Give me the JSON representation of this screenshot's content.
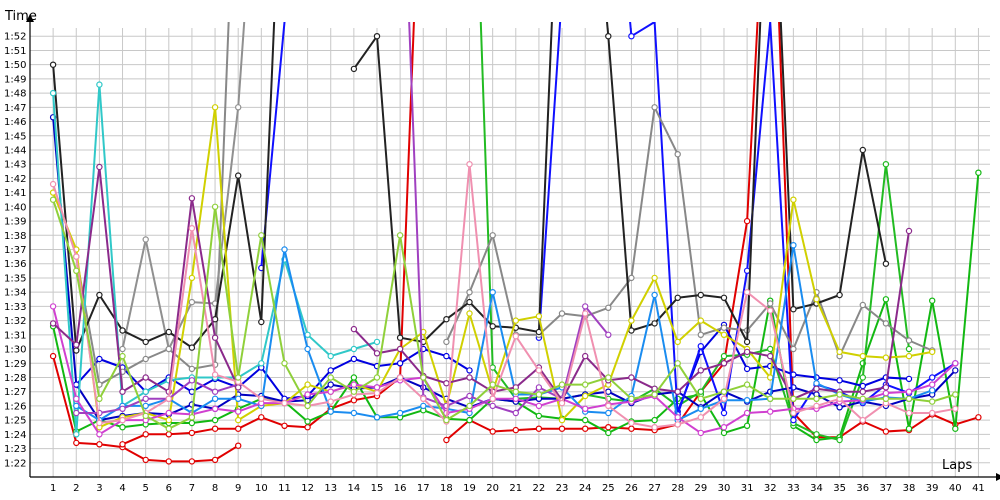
{
  "chart_data": {
    "type": "line",
    "ylabel": "Time",
    "xlabel": "Laps",
    "ylim": [
      "1:21",
      "1:53"
    ],
    "xlim": [
      0,
      41.5
    ],
    "grid": true,
    "x_ticks": [
      "1",
      "2",
      "3",
      "4",
      "5",
      "6",
      "7",
      "8",
      "9",
      "10",
      "11",
      "12",
      "13",
      "14",
      "15",
      "16",
      "17",
      "18",
      "19",
      "20",
      "21",
      "22",
      "23",
      "24",
      "25",
      "26",
      "27",
      "28",
      "29",
      "30",
      "31",
      "32",
      "33",
      "34",
      "35",
      "36",
      "37",
      "38",
      "39",
      "40",
      "41"
    ],
    "y_ticks": [
      "1:22",
      "1:23",
      "1:24",
      "1:25",
      "1:26",
      "1:27",
      "1:28",
      "1:29",
      "1:30",
      "1:31",
      "1:32",
      "1:33",
      "1:34",
      "1:35",
      "1:36",
      "1:37",
      "1:38",
      "1:39",
      "1:40",
      "1:41",
      "1:42",
      "1:43",
      "1:44",
      "1:45",
      "1:46",
      "1:47",
      "1:48",
      "1:49",
      "1:50",
      "1:51",
      "1:52"
    ],
    "series": [
      {
        "color": "#e00000",
        "values": [
          89.5,
          83.4,
          83.3,
          83.1,
          82.2,
          82.1,
          82.1,
          82.2,
          83.2,
          null,
          null,
          null,
          null,
          null,
          null,
          null,
          null,
          83.6,
          85.0,
          84.2,
          84.3,
          84.4,
          84.4,
          84.4,
          84.5,
          84.4,
          84.3,
          84.7,
          87.0,
          89.0,
          99.0,
          130.0,
          85.5,
          83.8,
          83.8,
          84.9,
          84.2,
          84.3,
          85.4,
          84.7,
          85.2
        ]
      },
      {
        "color": "#e00000",
        "values": [
          null,
          null,
          null,
          83.3,
          84.0,
          84.0,
          84.1,
          84.4,
          84.4,
          85.2,
          84.6,
          84.5,
          85.8,
          86.4,
          86.7,
          88.0,
          130.0
        ]
      },
      {
        "color": "#12b812",
        "values": [
          91.6,
          84.2,
          85.0,
          84.5,
          84.7,
          84.8,
          84.8,
          85.0,
          85.8,
          86.5,
          86.3,
          84.9,
          85.6,
          88.0,
          85.2,
          85.2,
          85.7,
          85.1,
          85.0,
          86.5,
          86.3,
          85.3,
          85.1,
          85.0,
          84.1,
          84.9,
          85.0,
          86.5,
          86.8,
          84.1,
          84.6,
          93.4,
          84.6,
          83.6,
          83.8,
          89.0,
          93.5,
          84.4,
          93.4,
          84.4,
          102.4
        ]
      },
      {
        "color": "#22bb22",
        "values": [
          null,
          null,
          null,
          null,
          null,
          null,
          null,
          null,
          null,
          null,
          null,
          null,
          null,
          null,
          null,
          null,
          null,
          null,
          136.0,
          88.7,
          86.5,
          86.6,
          86.5,
          86.8,
          86.5,
          86.3,
          87.2,
          86.0,
          87.0,
          89.5,
          89.6,
          90.0,
          84.8,
          84.0,
          83.6,
          88.0,
          103.0,
          90.0
        ]
      },
      {
        "color": "#0000c0",
        "values": [
          106.3,
          87.5,
          85.0,
          85.3,
          85.5,
          85.4,
          86.1,
          85.8,
          86.8,
          86.7,
          86.3,
          86.4,
          87.5,
          87.2,
          87.3,
          88.0,
          87.3,
          86.5,
          85.9,
          86.5,
          86.3,
          86.5,
          86.5,
          86.8,
          87.0,
          86.2,
          86.8,
          87.0,
          85.9,
          87.0,
          86.3,
          87.0,
          87.3,
          86.8,
          85.9,
          86.3,
          86.0,
          86.5,
          86.8,
          88.5
        ]
      },
      {
        "color": "#0000e0",
        "values": [
          null,
          87.5,
          89.3,
          88.7,
          87.0,
          88.0,
          87.0,
          87.9,
          87.3,
          88.7,
          86.5,
          86.7,
          88.5,
          89.3,
          88.8,
          89.0,
          90.0,
          89.5,
          88.5,
          null,
          null,
          null,
          null,
          null,
          null,
          null,
          null,
          85.6,
          89.8,
          91.7,
          88.6,
          88.8,
          88.2,
          88.0,
          87.8,
          87.4,
          88.0,
          87.9
        ]
      },
      {
        "color": "#1010ff",
        "values": [
          null,
          null,
          null,
          null,
          null,
          null,
          null,
          null,
          null,
          95.7,
          113.0,
          130.0,
          null,
          null,
          null,
          null,
          null,
          null,
          null,
          null,
          null,
          90.8,
          115.0,
          130.0,
          130.0,
          112.0,
          113.0,
          85.4,
          90.2,
          85.5,
          95.5,
          113.0,
          85.0,
          87.5,
          87.0,
          86.2,
          87.5,
          86.9,
          88.0,
          89.0
        ]
      },
      {
        "color": "#888888",
        "values": [
          null,
          96.5,
          87.5,
          88.4,
          89.3,
          90.0,
          88.6,
          88.9,
          130.0,
          null,
          null,
          null,
          null,
          null,
          null,
          null,
          null,
          90.5,
          94.0,
          98.0,
          91.0,
          91.0,
          92.5,
          92.3,
          92.9,
          95.0,
          107.0,
          103.7,
          91.0,
          91.5,
          91.3,
          93.2,
          90.0,
          94.0,
          89.5,
          93.1,
          91.8,
          90.6,
          89.9
        ]
      },
      {
        "color": "#909090",
        "values": [
          null,
          null,
          null,
          90.0,
          97.7,
          90.0,
          93.3,
          93.2,
          107.0,
          130.0
        ]
      },
      {
        "color": "#222222",
        "values": [
          110.0,
          89.9,
          93.8,
          91.3,
          90.5,
          91.2,
          90.1,
          92.1,
          102.2,
          91.9,
          130.0,
          null,
          null,
          109.7,
          112.0,
          90.8,
          90.5,
          92.1,
          93.3,
          91.6,
          91.5,
          91.2,
          130.0,
          130.0,
          112.0,
          91.3,
          91.8,
          93.6,
          93.8,
          93.6,
          90.5,
          130.0,
          92.8,
          93.2,
          93.8,
          104.0,
          96.0
        ]
      },
      {
        "color": "#d0d000",
        "values": [
          101.0,
          97.0,
          84.5,
          85.2,
          85.5,
          85.0,
          95.0,
          107.0,
          85.0,
          86.0,
          86.2,
          87.5,
          87.0,
          87.5,
          87.0,
          90.0,
          91.2,
          86.0,
          92.5,
          87.0,
          92.0,
          92.3,
          85.0,
          86.7,
          87.5,
          92.0,
          95.0,
          90.5,
          92.0,
          91.0,
          90.0,
          88.0,
          100.5,
          93.5,
          89.8,
          89.5,
          89.4,
          89.5,
          89.8
        ]
      },
      {
        "color": "#30c8c8",
        "values": [
          108.0,
          84.0,
          108.6,
          86.0,
          87.0,
          87.8,
          88.0,
          88.0,
          88.0,
          89.0,
          96.3,
          91.0,
          89.5,
          90.0,
          90.5
        ]
      },
      {
        "color": "#1a8cf0",
        "values": [
          null,
          86.0,
          85.0,
          86.0,
          86.0,
          86.5,
          85.5,
          86.5,
          86.5,
          86.0,
          97.0,
          90.0,
          85.6,
          85.5,
          85.2,
          85.5,
          86.0,
          85.8,
          85.5,
          94.0,
          86.8,
          86.8,
          87.3,
          85.6,
          85.5,
          86.7,
          93.8,
          85.0,
          85.8,
          86.4,
          86.4,
          86.5,
          97.3,
          87.6,
          86.8,
          86.3,
          86.6,
          86.5,
          87.1
        ]
      },
      {
        "color": "#d040d0",
        "values": [
          93.0,
          86.5,
          84.0,
          85.0,
          85.0,
          85.5,
          85.4,
          85.8,
          85.6,
          86.2,
          86.2,
          86.8,
          87.0,
          87.5,
          87.3,
          87.8,
          88.0,
          85.5,
          85.8,
          86.5,
          86.5,
          86.0,
          86.5,
          85.8,
          86.1,
          86.3,
          86.7,
          85.2,
          84.1,
          84.5,
          85.5,
          85.6,
          85.8,
          85.8,
          86.3,
          86.4,
          86.9,
          87.0,
          87.5,
          89.0
        ]
      },
      {
        "color": "#a040c0",
        "values": [
          null,
          85.5,
          85.5,
          85.8,
          86.5,
          86.5,
          87.8,
          87.0,
          87.5,
          null,
          null,
          null,
          null,
          null,
          130.0,
          130.0,
          86.6,
          86.0,
          86.7,
          86.0,
          85.5,
          87.3,
          86.5,
          93.0,
          91.0
        ]
      },
      {
        "color": "#8b2a8b",
        "values": [
          91.8,
          90.3,
          102.8,
          87.0,
          88.0,
          87.0,
          100.6,
          90.8,
          87.3,
          null,
          null,
          null,
          null,
          91.4,
          89.7,
          90.0,
          88.1,
          87.6,
          88.0,
          87.0,
          87.3,
          88.7,
          86.4,
          89.5,
          87.8,
          88.0,
          87.2,
          87.0,
          88.5,
          89.0,
          89.8,
          89.5,
          86.5,
          87.2,
          87.0,
          87.0,
          87.3,
          98.3
        ]
      },
      {
        "color": "#f090b0",
        "values": [
          101.6,
          96.5,
          84.8,
          85.0,
          85.5,
          86.5,
          98.5,
          88.2,
          87.7,
          86.5,
          86.2,
          86.0,
          86.3,
          86.8,
          86.9,
          88.0,
          86.5,
          84.9,
          103.0,
          86.5,
          90.9,
          88.5,
          86.2,
          92.5,
          86.0,
          84.8,
          84.5,
          84.7,
          85.2,
          86.5,
          94.0,
          92.7,
          85.5,
          86.0,
          86.5,
          85.0,
          86.2,
          85.5,
          85.5,
          85.8
        ]
      },
      {
        "color": "#8fd03a",
        "values": [
          100.5,
          95.5,
          86.5,
          89.5,
          85.3,
          84.4,
          85.2,
          100.0,
          88.0,
          98.0,
          89.0,
          86.0,
          88.0,
          87.0,
          88.0,
          98.0,
          88.0,
          85.0,
          86.0,
          87.5,
          87.0,
          86.8,
          87.5,
          87.5,
          88.0,
          86.5,
          86.8,
          89.0,
          86.5,
          87.0,
          87.5,
          86.5,
          86.5,
          86.5,
          86.8,
          86.5,
          86.5,
          86.5,
          86.3,
          86.8
        ]
      }
    ]
  }
}
